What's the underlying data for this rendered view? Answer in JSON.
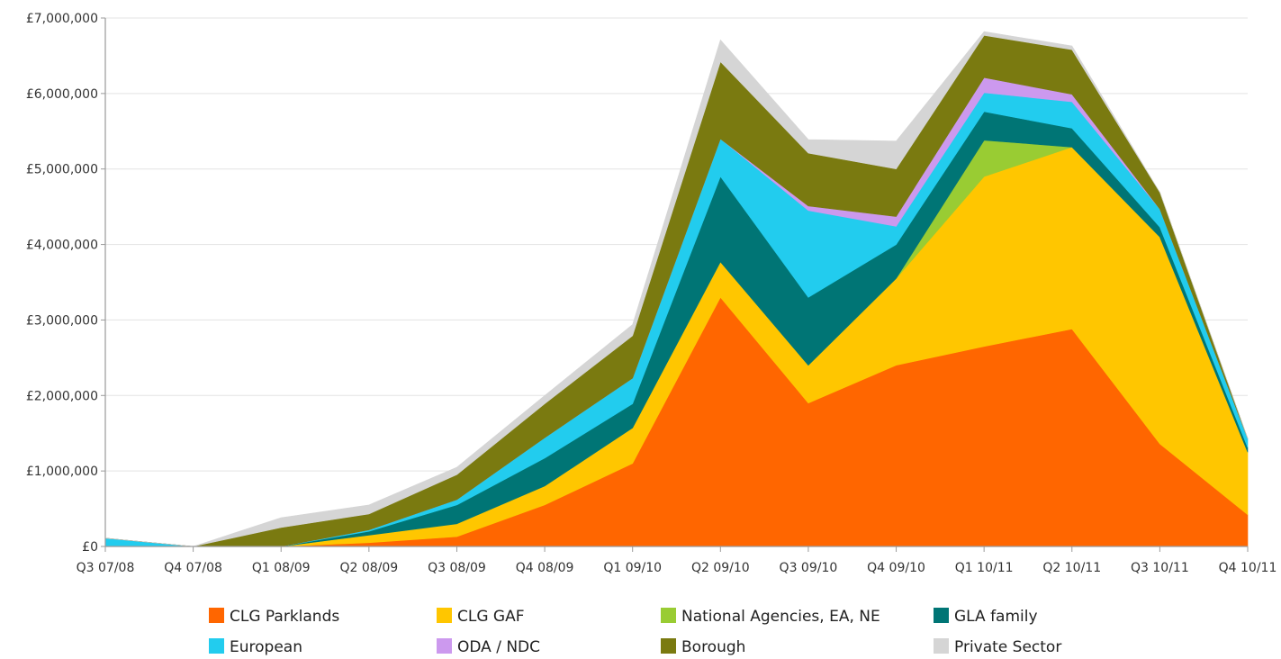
{
  "chart_data": {
    "type": "area",
    "stacked": true,
    "title": "",
    "xlabel": "",
    "ylabel": "",
    "categories": [
      "Q3 07/08",
      "Q4 07/08",
      "Q1 08/09",
      "Q2 08/09",
      "Q3 08/09",
      "Q4 08/09",
      "Q1 09/10",
      "Q2 09/10",
      "Q3 09/10",
      "Q4 09/10",
      "Q1 10/11",
      "Q2 10/11",
      "Q3 10/11",
      "Q4 10/11"
    ],
    "y_tick_labels": [
      "£0",
      "£1,000,000",
      "£2,000,000",
      "£3,000,000",
      "£4,000,000",
      "£5,000,000",
      "£6,000,000",
      "£7,000,000"
    ],
    "ylim": [
      0,
      7000000
    ],
    "grid": "horizontal",
    "legend_position": "bottom",
    "series": [
      {
        "name": "CLG Parklands",
        "color": "#ff6600",
        "values": [
          0,
          0,
          0,
          50000,
          130000,
          550000,
          1100000,
          3300000,
          1900000,
          2400000,
          2650000,
          2880000,
          1360000,
          420000
        ]
      },
      {
        "name": "CLG GAF",
        "color": "#ffc600",
        "values": [
          0,
          0,
          0,
          100000,
          170000,
          250000,
          470000,
          470000,
          500000,
          1150000,
          2250000,
          2410000,
          2740000,
          830000
        ]
      },
      {
        "name": "National Agencies, EA, NE",
        "color": "#99cc33",
        "values": [
          0,
          0,
          0,
          0,
          0,
          0,
          0,
          0,
          0,
          0,
          480000,
          0,
          0,
          0
        ]
      },
      {
        "name": "GLA family",
        "color": "#007575",
        "values": [
          0,
          0,
          0,
          50000,
          250000,
          370000,
          320000,
          1130000,
          900000,
          450000,
          380000,
          250000,
          130000,
          60000
        ]
      },
      {
        "name": "European",
        "color": "#22ccee",
        "values": [
          110000,
          0,
          0,
          20000,
          70000,
          270000,
          340000,
          500000,
          1150000,
          240000,
          250000,
          350000,
          240000,
          120000
        ]
      },
      {
        "name": "ODA / NDC",
        "color": "#cc99ee",
        "values": [
          0,
          0,
          0,
          0,
          0,
          0,
          0,
          0,
          60000,
          130000,
          200000,
          100000,
          0,
          0
        ]
      },
      {
        "name": "Borough",
        "color": "#7a7a10",
        "values": [
          0,
          0,
          250000,
          210000,
          330000,
          450000,
          560000,
          1020000,
          700000,
          630000,
          560000,
          590000,
          220000,
          0
        ]
      },
      {
        "name": "Private Sector",
        "color": "#d5d5d5",
        "values": [
          0,
          0,
          130000,
          120000,
          100000,
          110000,
          150000,
          290000,
          180000,
          370000,
          50000,
          50000,
          0,
          0
        ]
      }
    ]
  }
}
